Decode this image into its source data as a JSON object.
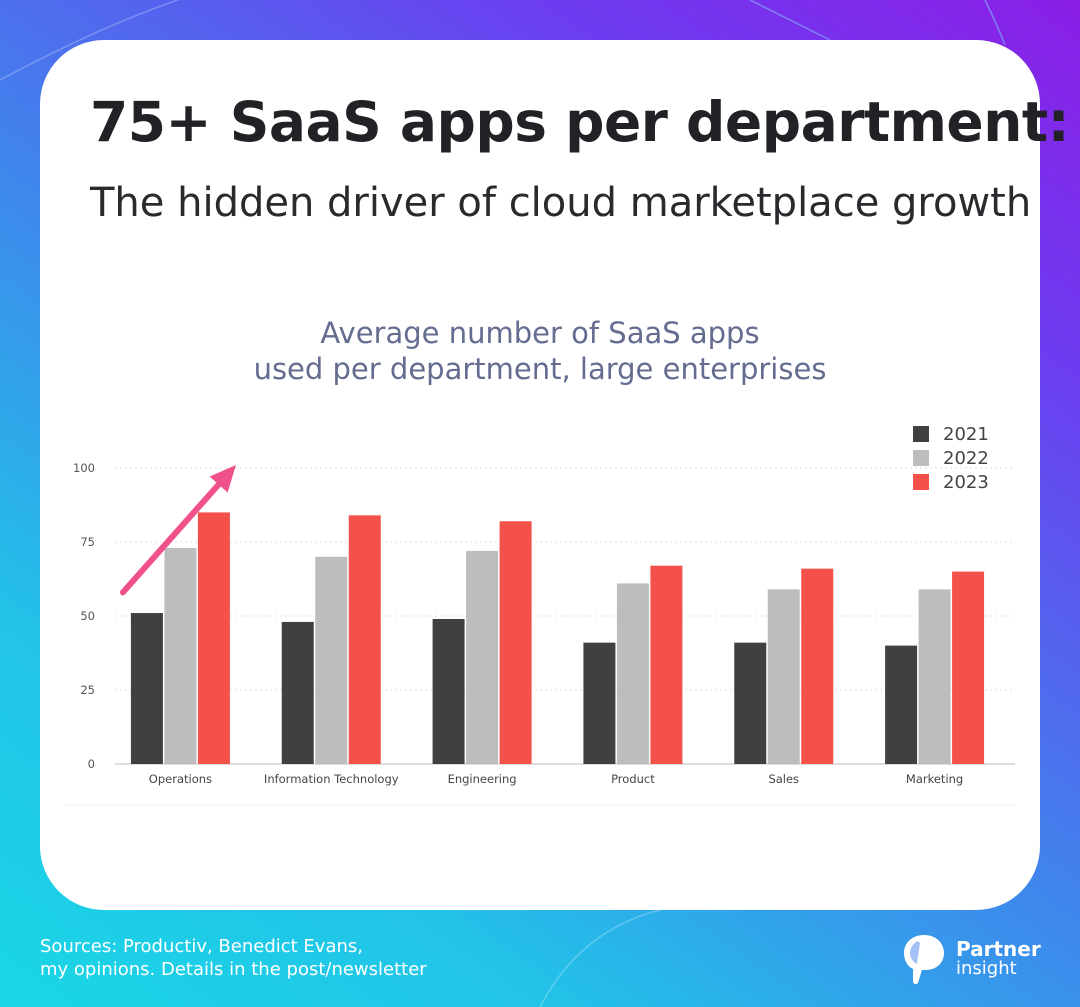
{
  "header": {
    "title": "75+ SaaS apps per department:",
    "subtitle": "The hidden driver of cloud marketplace growth"
  },
  "chart_data": {
    "type": "bar",
    "title_lines": [
      "Average number of SaaS apps",
      "used per department, large enterprises"
    ],
    "categories": [
      "Operations",
      "Information Technology",
      "Engineering",
      "Product",
      "Sales",
      "Marketing"
    ],
    "series": [
      {
        "name": "2021",
        "color": "#404040",
        "values": [
          51,
          48,
          49,
          41,
          41,
          40
        ]
      },
      {
        "name": "2022",
        "color": "#bdbdbd",
        "values": [
          73,
          70,
          72,
          61,
          59,
          59
        ]
      },
      {
        "name": "2023",
        "color": "#f4514a",
        "values": [
          85,
          84,
          82,
          67,
          66,
          65
        ]
      }
    ],
    "ylim": [
      0,
      100
    ],
    "yticks": [
      0,
      25,
      50,
      75,
      100
    ],
    "grid": true,
    "legend": "top-right",
    "annotation": {
      "type": "arrow",
      "color": "#f0518a",
      "from": {
        "category": "Operations",
        "value": 58
      },
      "to": {
        "category": "Operations",
        "value": 101
      }
    }
  },
  "footer": {
    "sources_line1": "Sources: Productiv, Benedict Evans,",
    "sources_line2": "my opinions. Details in the post/newsletter"
  },
  "logo": {
    "word1": "Partner",
    "word2": "insight"
  }
}
